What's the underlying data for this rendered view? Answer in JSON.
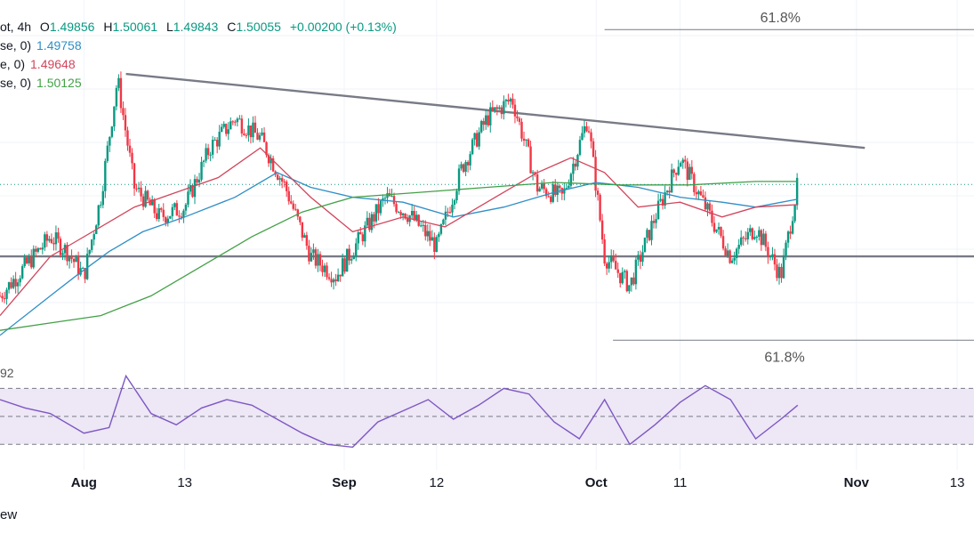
{
  "header": {
    "symbol_suffix": "ot, 4h",
    "ohlc": [
      {
        "label": "O",
        "value": "1.49856"
      },
      {
        "label": "H",
        "value": "1.50061"
      },
      {
        "label": "L",
        "value": "1.49843"
      },
      {
        "label": "C",
        "value": "1.50055"
      }
    ],
    "change": "+0.00200 (+0.13%)"
  },
  "indicators": [
    {
      "label": "se, 0)",
      "value": "1.49758",
      "color": "#2f8fc6"
    },
    {
      "label": "e, 0)",
      "value": "1.49648",
      "color": "#d2455b"
    },
    {
      "label": "se, 0)",
      "value": "1.50125",
      "color": "#43a047"
    }
  ],
  "colors": {
    "candle_up": "#089981",
    "candle_down": "#f23645",
    "trendline": "#787b86",
    "rsi_line": "#7e57c2",
    "rsi_band": "#ede7f6"
  },
  "fib_labels": [
    "61.8%",
    "61.8%"
  ],
  "rsi_partial_label": "92",
  "x_axis": {
    "ticks": [
      "Aug",
      "13",
      "Sep",
      "12",
      "Oct",
      "11",
      "Nov",
      "13"
    ],
    "bold": [
      "Aug",
      "Sep",
      "Oct",
      "Nov"
    ]
  },
  "footer_text": "ew",
  "chart_data": {
    "type": "line",
    "series": [
      {
        "role": "price",
        "x": [
          "2023-07-22",
          "2023-07-25",
          "2023-07-28",
          "2023-07-30",
          "2023-08-01",
          "2023-08-03",
          "2023-08-05",
          "2023-08-07",
          "2023-08-10",
          "2023-08-13",
          "2023-08-16",
          "2023-08-19",
          "2023-08-22",
          "2023-08-25",
          "2023-08-28",
          "2023-08-31",
          "2023-09-03",
          "2023-09-06",
          "2023-09-09",
          "2023-09-12",
          "2023-09-15",
          "2023-09-18",
          "2023-09-21",
          "2023-09-24",
          "2023-09-27",
          "2023-09-30",
          "2023-10-02",
          "2023-10-05",
          "2023-10-08",
          "2023-10-11",
          "2023-10-14",
          "2023-10-17",
          "2023-10-20",
          "2023-10-23",
          "2023-10-25"
        ],
        "values": [
          1.478,
          1.484,
          1.49,
          1.487,
          1.482,
          1.498,
          1.522,
          1.5,
          1.494,
          1.496,
          1.508,
          1.514,
          1.51,
          1.5,
          1.486,
          1.482,
          1.49,
          1.498,
          1.494,
          1.488,
          1.504,
          1.514,
          1.518,
          1.5,
          1.498,
          1.514,
          1.486,
          1.48,
          1.494,
          1.506,
          1.496,
          1.486,
          1.492,
          1.482,
          1.5006
        ]
      },
      {
        "name": "1.49758",
        "x": [
          "2023-07-22",
          "2023-07-25",
          "2023-07-28",
          "2023-07-31",
          "2023-08-04",
          "2023-08-08",
          "2023-08-13",
          "2023-08-19",
          "2023-08-24",
          "2023-08-28",
          "2023-09-02",
          "2023-09-08",
          "2023-09-14",
          "2023-09-20",
          "2023-09-26",
          "2023-10-01",
          "2023-10-06",
          "2023-10-11",
          "2023-10-16",
          "2023-10-20",
          "2023-10-25"
        ],
        "values": [
          1.47,
          1.474,
          1.478,
          1.482,
          1.487,
          1.491,
          1.494,
          1.498,
          1.503,
          1.5,
          1.498,
          1.497,
          1.494,
          1.496,
          1.499,
          1.501,
          1.5,
          1.498,
          1.497,
          1.496,
          1.4976
        ]
      },
      {
        "name": "1.49648",
        "x": [
          "2023-07-22",
          "2023-07-25",
          "2023-07-28",
          "2023-07-31",
          "2023-08-03",
          "2023-08-07",
          "2023-08-12",
          "2023-08-17",
          "2023-08-22",
          "2023-08-28",
          "2023-09-02",
          "2023-09-08",
          "2023-09-13",
          "2023-09-19",
          "2023-09-24",
          "2023-09-28",
          "2023-10-02",
          "2023-10-06",
          "2023-10-11",
          "2023-10-16",
          "2023-10-20",
          "2023-10-25"
        ],
        "values": [
          1.474,
          1.48,
          1.486,
          1.489,
          1.492,
          1.496,
          1.499,
          1.502,
          1.508,
          1.498,
          1.491,
          1.494,
          1.492,
          1.498,
          1.503,
          1.506,
          1.503,
          1.496,
          1.497,
          1.494,
          1.496,
          1.4965
        ]
      },
      {
        "name": "1.50125",
        "x": [
          "2023-07-22",
          "2023-07-28",
          "2023-08-03",
          "2023-08-09",
          "2023-08-15",
          "2023-08-21",
          "2023-08-27",
          "2023-09-02",
          "2023-09-10",
          "2023-09-18",
          "2023-09-26",
          "2023-10-04",
          "2023-10-12",
          "2023-10-20",
          "2023-10-25"
        ],
        "values": [
          1.471,
          1.4725,
          1.474,
          1.478,
          1.484,
          1.49,
          1.495,
          1.498,
          1.499,
          1.5,
          1.501,
          1.5005,
          1.5005,
          1.5012,
          1.5012
        ]
      },
      {
        "role": "rsi",
        "x": [
          "2023-07-22",
          "2023-07-25",
          "2023-07-28",
          "2023-08-01",
          "2023-08-04",
          "2023-08-06",
          "2023-08-09",
          "2023-08-12",
          "2023-08-15",
          "2023-08-18",
          "2023-08-21",
          "2023-08-24",
          "2023-08-27",
          "2023-08-30",
          "2023-09-02",
          "2023-09-05",
          "2023-09-08",
          "2023-09-11",
          "2023-09-14",
          "2023-09-17",
          "2023-09-20",
          "2023-09-23",
          "2023-09-26",
          "2023-09-29",
          "2023-10-02",
          "2023-10-05",
          "2023-10-08",
          "2023-10-11",
          "2023-10-14",
          "2023-10-17",
          "2023-10-20",
          "2023-10-23",
          "2023-10-25"
        ],
        "values": [
          62,
          56,
          52,
          38,
          42,
          79,
          52,
          44,
          56,
          62,
          58,
          48,
          38,
          30,
          28,
          46,
          54,
          62,
          48,
          58,
          70,
          66,
          46,
          34,
          62,
          30,
          44,
          60,
          72,
          62,
          34,
          48,
          58
        ]
      }
    ],
    "x_ticks": [
      "Aug",
      "13",
      "Sep",
      "12",
      "Oct",
      "11",
      "Nov",
      "13"
    ],
    "trendlines": [
      {
        "from": {
          "x": "2023-08-06",
          "y": 1.523
        },
        "to": {
          "x": "2023-11-02",
          "y": 1.508
        }
      },
      {
        "from": {
          "x": "2023-07-22",
          "y": 1.486
        },
        "to": {
          "x": "2023-11-15",
          "y": 1.486
        }
      }
    ],
    "fib_lines": [
      {
        "label": "61.8%",
        "y": 1.532,
        "x_from": "2023-10-02",
        "x_to": "2023-11-15"
      },
      {
        "label": "61.8%",
        "y": 1.469,
        "x_from": "2023-10-03",
        "x_to": "2023-11-15"
      }
    ],
    "price_ylim": [
      1.464,
      1.538
    ],
    "rsi": {
      "ylim": [
        20,
        90
      ],
      "bands": [
        70,
        50,
        30
      ]
    },
    "xlim": [
      "2023-07-22",
      "2023-11-15"
    ],
    "grid": true
  }
}
